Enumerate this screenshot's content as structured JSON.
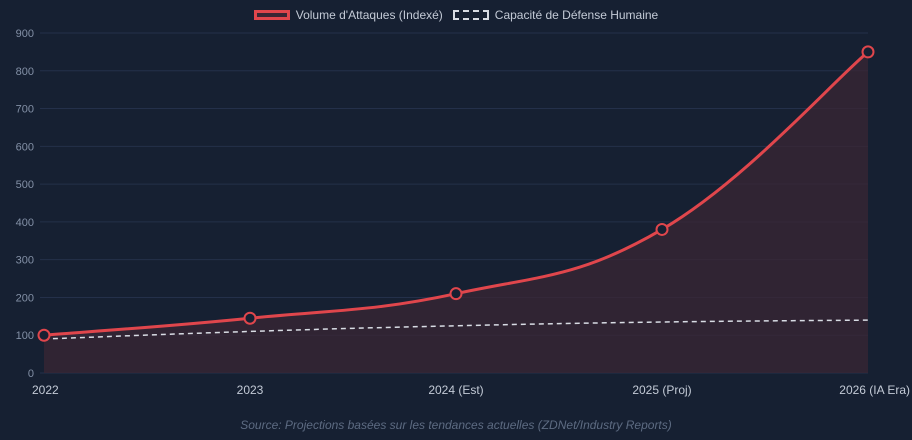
{
  "chart_data": {
    "type": "line",
    "categories": [
      "2022",
      "2023",
      "2024 (Est)",
      "2025 (Proj)",
      "2026 (IA Era)"
    ],
    "series": [
      {
        "name": "Volume d'Attaques (Indexé)",
        "values": [
          100,
          145,
          210,
          380,
          850
        ],
        "color": "#e0464c",
        "style": "solid",
        "fill": true
      },
      {
        "name": "Capacité de Défense Humaine",
        "values": [
          90,
          110,
          125,
          135,
          140
        ],
        "color": "#d8dce4",
        "style": "dashed"
      }
    ],
    "ylim": [
      0,
      900
    ],
    "yticks": [
      0,
      100,
      200,
      300,
      400,
      500,
      600,
      700,
      800,
      900
    ],
    "grid": true,
    "legend": "top",
    "source": "Source: Projections basées sur les tendances actuelles (ZDNet/Industry Reports)"
  }
}
